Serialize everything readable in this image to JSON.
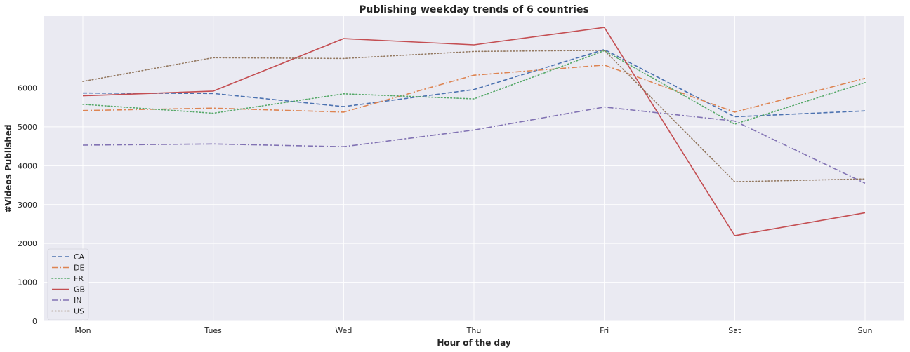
{
  "chart_data": {
    "type": "line",
    "title": "Publishing weekday trends of 6 countries",
    "xlabel": "Hour of the day",
    "ylabel": "#Videos Published",
    "categories": [
      "Mon",
      "Tues",
      "Wed",
      "Thu",
      "Fri",
      "Sat",
      "Sun"
    ],
    "ylim": [
      0,
      7850
    ],
    "yticks": [
      0,
      1000,
      2000,
      3000,
      4000,
      5000,
      6000
    ],
    "grid": true,
    "legend_position": "bottom-left",
    "series": [
      {
        "name": "CA",
        "color": "#4c72b0",
        "dash": "dashed",
        "values": [
          5870,
          5860,
          5520,
          5960,
          6990,
          5260,
          5410
        ]
      },
      {
        "name": "DE",
        "color": "#dd8452",
        "dash": "dashdot",
        "values": [
          5420,
          5480,
          5380,
          6330,
          6590,
          5380,
          6250
        ]
      },
      {
        "name": "FR",
        "color": "#55a868",
        "dash": "dotted",
        "values": [
          5580,
          5350,
          5850,
          5720,
          6960,
          5070,
          6140
        ]
      },
      {
        "name": "GB",
        "color": "#c44e52",
        "dash": "solid",
        "values": [
          5800,
          5920,
          7270,
          7110,
          7560,
          2200,
          2790
        ]
      },
      {
        "name": "IN",
        "color": "#8172b3",
        "dash": "dashdot",
        "values": [
          4530,
          4560,
          4490,
          4920,
          5510,
          5150,
          3550
        ]
      },
      {
        "name": "US",
        "color": "#937860",
        "dash": "dotted",
        "values": [
          6170,
          6780,
          6760,
          6940,
          6970,
          3590,
          3660
        ]
      }
    ]
  }
}
